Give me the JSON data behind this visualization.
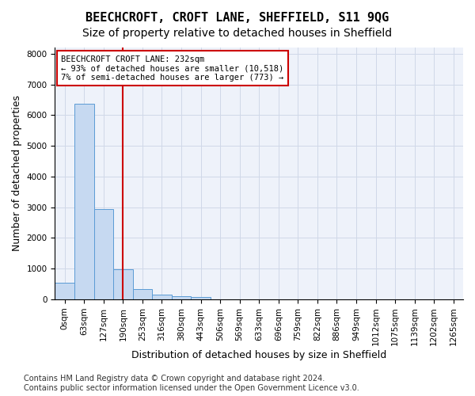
{
  "title": "BEECHCROFT, CROFT LANE, SHEFFIELD, S11 9QG",
  "subtitle": "Size of property relative to detached houses in Sheffield",
  "xlabel": "Distribution of detached houses by size in Sheffield",
  "ylabel": "Number of detached properties",
  "bar_values": [
    550,
    6380,
    2940,
    980,
    340,
    160,
    100,
    65,
    0,
    0,
    0,
    0,
    0,
    0,
    0,
    0,
    0,
    0,
    0,
    0,
    0
  ],
  "bar_labels": [
    "0sqm",
    "63sqm",
    "127sqm",
    "190sqm",
    "253sqm",
    "316sqm",
    "380sqm",
    "443sqm",
    "506sqm",
    "569sqm",
    "633sqm",
    "696sqm",
    "759sqm",
    "822sqm",
    "886sqm",
    "949sqm",
    "1012sqm",
    "1075sqm",
    "1139sqm",
    "1202sqm",
    "1265sqm"
  ],
  "bar_color": "#c6d9f1",
  "bar_edge_color": "#5b9bd5",
  "grid_color": "#d0d8e8",
  "background_color": "#eef2fa",
  "vline_x": 3.5,
  "vline_color": "#cc0000",
  "annotation_box_text": "BEECHCROFT CROFT LANE: 232sqm\n← 93% of detached houses are smaller (10,518)\n7% of semi-detached houses are larger (773) →",
  "annotation_box_color": "#cc0000",
  "ylim": [
    0,
    8200
  ],
  "yticks": [
    0,
    1000,
    2000,
    3000,
    4000,
    5000,
    6000,
    7000,
    8000
  ],
  "footer_line1": "Contains HM Land Registry data © Crown copyright and database right 2024.",
  "footer_line2": "Contains public sector information licensed under the Open Government Licence v3.0.",
  "title_fontsize": 11,
  "subtitle_fontsize": 10,
  "xlabel_fontsize": 9,
  "ylabel_fontsize": 9,
  "tick_fontsize": 7.5,
  "annotation_fontsize": 7.5,
  "footer_fontsize": 7
}
